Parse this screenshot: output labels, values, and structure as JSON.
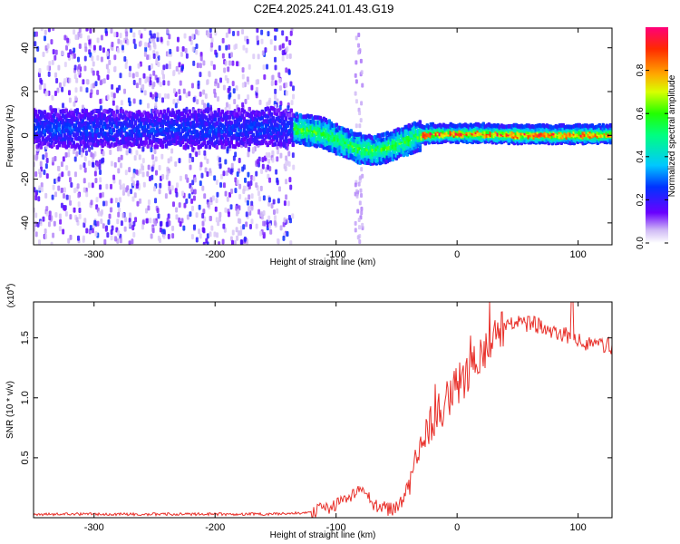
{
  "figure_title": "C2E4.2025.241.01.43.G19",
  "chart_data": [
    {
      "type": "heatmap",
      "title": "C2E4.2025.241.01.43.G19",
      "xlabel": "Height of straight line (km)",
      "ylabel": "Frequency (Hz)",
      "xlim": [
        -350,
        128
      ],
      "ylim": [
        -50,
        49
      ],
      "xticks": [
        -300,
        -200,
        -100,
        0,
        100
      ],
      "yticks": [
        -40,
        -20,
        0,
        20,
        40
      ],
      "grid": false,
      "colorbar": {
        "label": "Normalized spectral amplitude",
        "range": [
          0,
          1
        ],
        "ticks": [
          0.0,
          0.2,
          0.4,
          0.6,
          0.8
        ],
        "tick_labels": [
          "0.0",
          "0.2",
          "0.4",
          "0.6",
          "0.8"
        ]
      },
      "signal_centerline": {
        "x": [
          -350,
          -300,
          -250,
          -200,
          -150,
          -130,
          -110,
          -95,
          -80,
          -70,
          -60,
          -45,
          -30,
          -20,
          -10,
          0,
          20,
          50,
          80,
          100,
          128
        ],
        "frequency": [
          3,
          3,
          3,
          3,
          4,
          3,
          1,
          -3,
          -6,
          -7,
          -6,
          -3,
          0,
          1,
          1,
          1,
          1,
          0.5,
          0.5,
          0.5,
          0.5
        ]
      },
      "noise_region": {
        "x_range": [
          -350,
          -135
        ]
      }
    },
    {
      "type": "line",
      "xlabel": "Height of straight line (km)",
      "ylabel": "SNR (10 * v/v)",
      "y_multiplier_label": "(x10^4)",
      "xlim": [
        -350,
        128
      ],
      "ylim": [
        0,
        1.8
      ],
      "xticks": [
        -300,
        -200,
        -100,
        0,
        100
      ],
      "yticks": [
        0.5,
        1.0,
        1.5
      ],
      "ytick_labels": [
        "0.5",
        "1.0",
        "1.5"
      ],
      "grid": false,
      "series": [
        {
          "color": "#e8302a",
          "x": [
            -350,
            -300,
            -250,
            -200,
            -150,
            -125,
            -110,
            -100,
            -90,
            -80,
            -75,
            -70,
            -62,
            -55,
            -50,
            -45,
            -40,
            -35,
            -30,
            -25,
            -20,
            -15,
            -10,
            -5,
            0,
            5,
            10,
            15,
            20,
            25,
            30,
            35,
            40,
            50,
            60,
            70,
            80,
            90,
            95,
            100,
            110,
            128
          ],
          "y": [
            0.03,
            0.03,
            0.03,
            0.03,
            0.03,
            0.04,
            0.07,
            0.11,
            0.15,
            0.22,
            0.18,
            0.12,
            0.08,
            0.07,
            0.09,
            0.14,
            0.3,
            0.48,
            0.62,
            0.72,
            0.82,
            0.9,
            0.96,
            1.05,
            1.1,
            1.15,
            1.22,
            1.3,
            1.35,
            1.42,
            1.5,
            1.55,
            1.6,
            1.62,
            1.62,
            1.6,
            1.56,
            1.53,
            1.48,
            1.47,
            1.45,
            1.43
          ]
        }
      ]
    }
  ]
}
